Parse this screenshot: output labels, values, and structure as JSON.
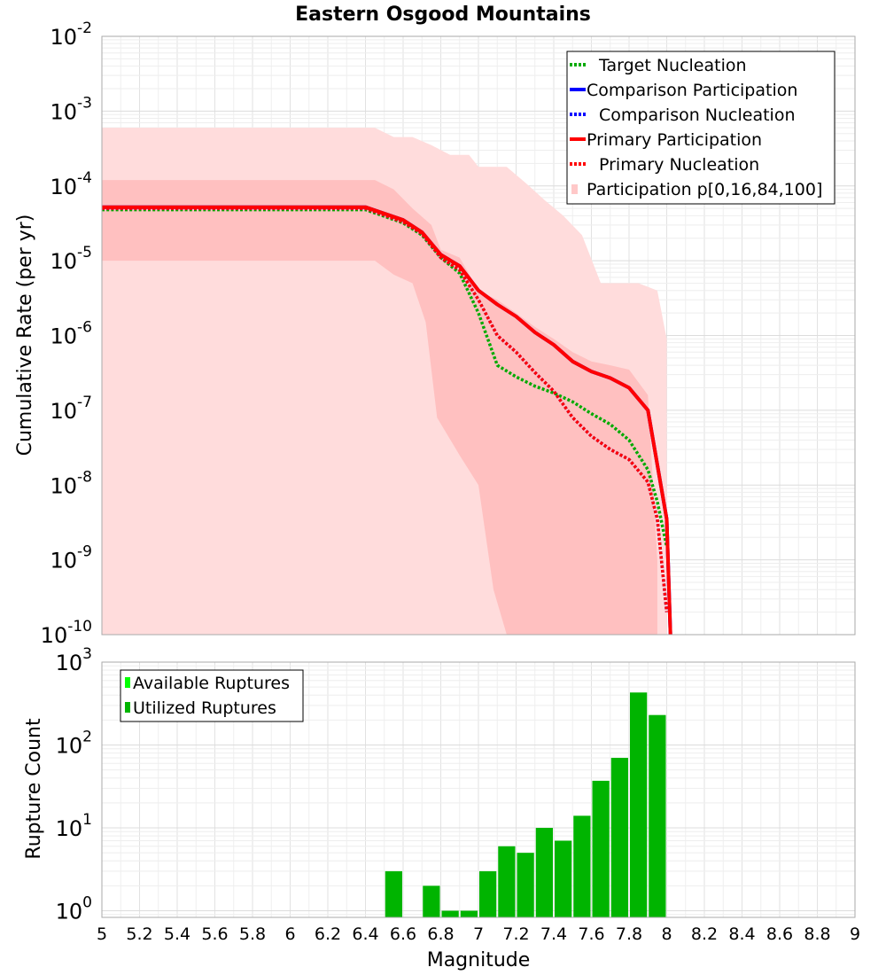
{
  "chart_data": [
    {
      "type": "line",
      "title": "Eastern Osgood Mountains",
      "xlabel": "",
      "ylabel": "Cumulative Rate (per yr)",
      "xlim": [
        5,
        9
      ],
      "ylim_log10": [
        -10,
        -2
      ],
      "yscale": "log",
      "y_tick_exponents": [
        "-10",
        "-9",
        "-8",
        "-7",
        "-6",
        "-5",
        "-4",
        "-3",
        "-2"
      ],
      "legend": [
        {
          "label": "Target Nucleation",
          "color": "#00aa00",
          "style": "dotted"
        },
        {
          "label": "Comparison Participation",
          "color": "#0000ff",
          "style": "solid"
        },
        {
          "label": "Comparison Nucleation",
          "color": "#0000ff",
          "style": "dotted"
        },
        {
          "label": "Primary Participation",
          "color": "#ff0000",
          "style": "solid"
        },
        {
          "label": "Primary Nucleation",
          "color": "#ff0000",
          "style": "dotted"
        },
        {
          "label": "Participation p[0,16,84,100]",
          "color": "#ffc8c8",
          "style": "box"
        }
      ],
      "bands": {
        "outer_p0_p100": {
          "color": "#ffdcdc",
          "upper": [
            [
              5.0,
              0.0006
            ],
            [
              6.45,
              0.0006
            ],
            [
              6.55,
              0.00045
            ],
            [
              6.65,
              0.00045
            ],
            [
              6.75,
              0.00035
            ],
            [
              6.85,
              0.00026
            ],
            [
              6.95,
              0.00026
            ],
            [
              7.0,
              0.00018
            ],
            [
              7.15,
              0.00018
            ],
            [
              7.25,
              0.00011
            ],
            [
              7.35,
              6.5e-05
            ],
            [
              7.45,
              4e-05
            ],
            [
              7.55,
              2.2e-05
            ],
            [
              7.65,
              5e-06
            ],
            [
              7.85,
              5e-06
            ],
            [
              7.95,
              4e-06
            ],
            [
              8.0,
              9e-07
            ],
            [
              8.0,
              1e-10
            ]
          ],
          "lower": [
            [
              5.0,
              1e-10
            ],
            [
              8.0,
              1e-10
            ]
          ]
        },
        "inner_p16_p84": {
          "color": "#ffc0c0",
          "upper": [
            [
              5.0,
              0.00012
            ],
            [
              6.45,
              0.00012
            ],
            [
              6.55,
              9e-05
            ],
            [
              6.65,
              5e-05
            ],
            [
              6.75,
              3e-05
            ],
            [
              6.8,
              1.4e-05
            ],
            [
              6.9,
              1.1e-05
            ],
            [
              7.0,
              4e-06
            ],
            [
              7.1,
              3e-06
            ],
            [
              7.2,
              2e-06
            ],
            [
              7.3,
              1.3e-06
            ],
            [
              7.4,
              9e-07
            ],
            [
              7.5,
              6e-07
            ],
            [
              7.6,
              4.5e-07
            ],
            [
              7.7,
              4e-07
            ],
            [
              7.8,
              3.5e-07
            ],
            [
              7.9,
              1.6e-07
            ],
            [
              7.95,
              1e-09
            ],
            [
              7.95,
              1e-10
            ]
          ],
          "lower": [
            [
              5.0,
              1e-05
            ],
            [
              6.45,
              1e-05
            ],
            [
              6.55,
              6.5e-06
            ],
            [
              6.65,
              5e-06
            ],
            [
              6.72,
              1.5e-06
            ],
            [
              6.78,
              8e-08
            ],
            [
              6.9,
              2.5e-08
            ],
            [
              7.0,
              1e-08
            ],
            [
              7.08,
              4e-10
            ],
            [
              7.15,
              1e-10
            ]
          ]
        }
      },
      "series": [
        {
          "name": "Target Nucleation",
          "color": "#00aa00",
          "style": "dotted",
          "points": [
            [
              5.0,
              4.8e-05
            ],
            [
              6.4,
              4.8e-05
            ],
            [
              6.6,
              3.2e-05
            ],
            [
              6.7,
              2.2e-05
            ],
            [
              6.8,
              1.1e-05
            ],
            [
              6.9,
              6.8e-06
            ],
            [
              7.0,
              2e-06
            ],
            [
              7.1,
              4e-07
            ],
            [
              7.2,
              2.8e-07
            ],
            [
              7.3,
              2.1e-07
            ],
            [
              7.4,
              1.7e-07
            ],
            [
              7.5,
              1.3e-07
            ],
            [
              7.6,
              9e-08
            ],
            [
              7.7,
              6.5e-08
            ],
            [
              7.8,
              4e-08
            ],
            [
              7.9,
              1.6e-08
            ],
            [
              7.95,
              6e-09
            ],
            [
              8.0,
              1.5e-09
            ]
          ]
        },
        {
          "name": "Comparison Participation",
          "color": "#0000ff",
          "style": "solid",
          "points": [
            [
              5.0,
              5.2e-05
            ],
            [
              6.4,
              5.2e-05
            ],
            [
              6.6,
              3.5e-05
            ],
            [
              6.7,
              2.4e-05
            ],
            [
              6.8,
              1.2e-05
            ],
            [
              6.9,
              8.5e-06
            ],
            [
              7.0,
              4e-06
            ],
            [
              7.1,
              2.6e-06
            ],
            [
              7.2,
              1.8e-06
            ],
            [
              7.3,
              1.1e-06
            ],
            [
              7.4,
              7.5e-07
            ],
            [
              7.5,
              4.5e-07
            ],
            [
              7.6,
              3.3e-07
            ],
            [
              7.7,
              2.7e-07
            ],
            [
              7.8,
              2e-07
            ],
            [
              7.9,
              1e-07
            ],
            [
              8.0,
              3.5e-09
            ],
            [
              8.02,
              1e-10
            ]
          ]
        },
        {
          "name": "Comparison Nucleation",
          "color": "#0000ff",
          "style": "dotted",
          "points": [
            [
              5.0,
              5e-05
            ],
            [
              6.4,
              5e-05
            ],
            [
              6.6,
              3.3e-05
            ],
            [
              6.7,
              2.3e-05
            ],
            [
              6.8,
              1.1e-05
            ],
            [
              6.9,
              7.5e-06
            ],
            [
              7.0,
              3e-06
            ],
            [
              7.1,
              1e-06
            ],
            [
              7.2,
              6e-07
            ],
            [
              7.3,
              3.2e-07
            ],
            [
              7.4,
              1.8e-07
            ],
            [
              7.5,
              8e-08
            ],
            [
              7.6,
              4.5e-08
            ],
            [
              7.7,
              3e-08
            ],
            [
              7.8,
              2.2e-08
            ],
            [
              7.9,
              1.1e-08
            ],
            [
              7.95,
              3.5e-09
            ],
            [
              8.0,
              2e-10
            ]
          ]
        },
        {
          "name": "Primary Participation",
          "color": "#ff0000",
          "style": "solid",
          "points": [
            [
              5.0,
              5.2e-05
            ],
            [
              6.4,
              5.2e-05
            ],
            [
              6.6,
              3.5e-05
            ],
            [
              6.7,
              2.4e-05
            ],
            [
              6.8,
              1.2e-05
            ],
            [
              6.9,
              8.5e-06
            ],
            [
              7.0,
              4e-06
            ],
            [
              7.1,
              2.6e-06
            ],
            [
              7.2,
              1.8e-06
            ],
            [
              7.3,
              1.1e-06
            ],
            [
              7.4,
              7.5e-07
            ],
            [
              7.5,
              4.5e-07
            ],
            [
              7.6,
              3.3e-07
            ],
            [
              7.7,
              2.7e-07
            ],
            [
              7.8,
              2e-07
            ],
            [
              7.9,
              1e-07
            ],
            [
              8.0,
              3.5e-09
            ],
            [
              8.02,
              1e-10
            ]
          ]
        },
        {
          "name": "Primary Nucleation",
          "color": "#ff0000",
          "style": "dotted",
          "points": [
            [
              5.0,
              5e-05
            ],
            [
              6.4,
              5e-05
            ],
            [
              6.6,
              3.3e-05
            ],
            [
              6.7,
              2.3e-05
            ],
            [
              6.8,
              1.1e-05
            ],
            [
              6.9,
              7.5e-06
            ],
            [
              7.0,
              3e-06
            ],
            [
              7.1,
              1e-06
            ],
            [
              7.2,
              6e-07
            ],
            [
              7.3,
              3.2e-07
            ],
            [
              7.4,
              1.8e-07
            ],
            [
              7.5,
              8e-08
            ],
            [
              7.6,
              4.5e-08
            ],
            [
              7.7,
              3e-08
            ],
            [
              7.8,
              2.2e-08
            ],
            [
              7.9,
              1.1e-08
            ],
            [
              7.95,
              3.5e-09
            ],
            [
              8.0,
              2e-10
            ]
          ]
        }
      ]
    },
    {
      "type": "bar",
      "title": "",
      "xlabel": "Magnitude",
      "ylabel": "Rupture Count",
      "xlim": [
        5,
        9
      ],
      "yscale": "log",
      "ylim_log10": [
        -0.08,
        3
      ],
      "y_tick_exponents": [
        "0",
        "1",
        "2",
        "3"
      ],
      "x_ticks": [
        "5",
        "5.2",
        "5.4",
        "5.6",
        "5.8",
        "6",
        "6.2",
        "6.4",
        "6.6",
        "6.8",
        "7",
        "7.2",
        "7.4",
        "7.6",
        "7.8",
        "8",
        "8.2",
        "8.4",
        "8.6",
        "8.8",
        "9"
      ],
      "bin_width": 0.1,
      "legend": [
        {
          "label": "Available Ruptures",
          "color": "#00ff00"
        },
        {
          "label": "Utilized Ruptures",
          "color": "#00b400"
        }
      ],
      "bar_color": "#00b400",
      "bars": [
        {
          "x": 6.55,
          "value": 3
        },
        {
          "x": 6.75,
          "value": 2
        },
        {
          "x": 6.85,
          "value": 1
        },
        {
          "x": 6.95,
          "value": 1
        },
        {
          "x": 7.05,
          "value": 3
        },
        {
          "x": 7.15,
          "value": 6
        },
        {
          "x": 7.25,
          "value": 5
        },
        {
          "x": 7.35,
          "value": 10
        },
        {
          "x": 7.45,
          "value": 7
        },
        {
          "x": 7.55,
          "value": 14
        },
        {
          "x": 7.65,
          "value": 37
        },
        {
          "x": 7.75,
          "value": 70
        },
        {
          "x": 7.85,
          "value": 430
        },
        {
          "x": 7.95,
          "value": 230
        }
      ]
    }
  ]
}
